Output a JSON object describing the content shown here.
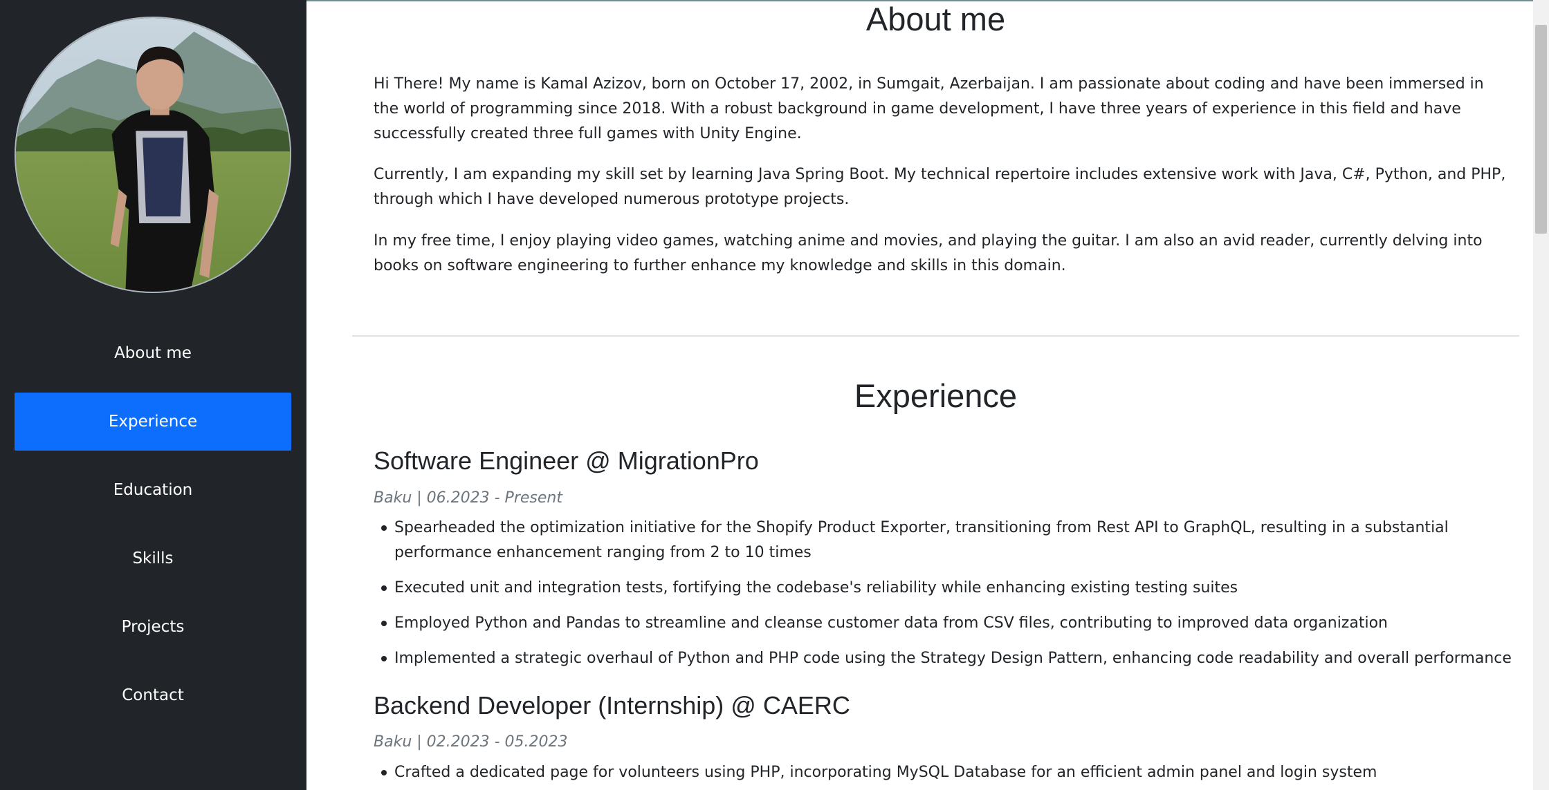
{
  "sidebar": {
    "avatar_icon": "profile-photo",
    "nav": [
      {
        "label": "About me",
        "active": false
      },
      {
        "label": "Experience",
        "active": true
      },
      {
        "label": "Education",
        "active": false
      },
      {
        "label": "Skills",
        "active": false
      },
      {
        "label": "Projects",
        "active": false
      },
      {
        "label": "Contact",
        "active": false
      }
    ],
    "colors": {
      "background": "#212529",
      "active": "#0d6efd"
    }
  },
  "about": {
    "title": "About me",
    "paragraphs": [
      "Hi There! My name is Kamal Azizov, born on October 17, 2002, in Sumgait, Azerbaijan. I am passionate about coding and have been immersed in the world of programming since 2018. With a robust background in game development, I have three years of experience in this field and have successfully created three full games with Unity Engine.",
      "Currently, I am expanding my skill set by learning Java Spring Boot. My technical repertoire includes extensive work with Java, C#, Python, and PHP, through which I have developed numerous prototype projects.",
      "In my free time, I enjoy playing video games, watching anime and movies, and playing the guitar. I am also an avid reader, currently delving into books on software engineering to further enhance my knowledge and skills in this domain."
    ]
  },
  "experience": {
    "title": "Experience",
    "jobs": [
      {
        "title": "Software Engineer @ MigrationPro",
        "meta": "Baku | 06.2023 - Present",
        "bullets": [
          "Spearheaded the optimization initiative for the Shopify Product Exporter, transitioning from Rest API to GraphQL, resulting in a substantial performance enhancement ranging from 2 to 10 times",
          "Executed unit and integration tests, fortifying the codebase's reliability while enhancing existing testing suites",
          "Employed Python and Pandas to streamline and cleanse customer data from CSV files, contributing to improved data organization",
          "Implemented a strategic overhaul of Python and PHP code using the Strategy Design Pattern, enhancing code readability and overall performance"
        ]
      },
      {
        "title": "Backend Developer (Internship) @ CAERC",
        "meta": "Baku | 02.2023 - 05.2023",
        "bullets": [
          "Crafted a dedicated page for volunteers using PHP, incorporating MySQL Database for an efficient admin panel and login system"
        ]
      }
    ]
  }
}
